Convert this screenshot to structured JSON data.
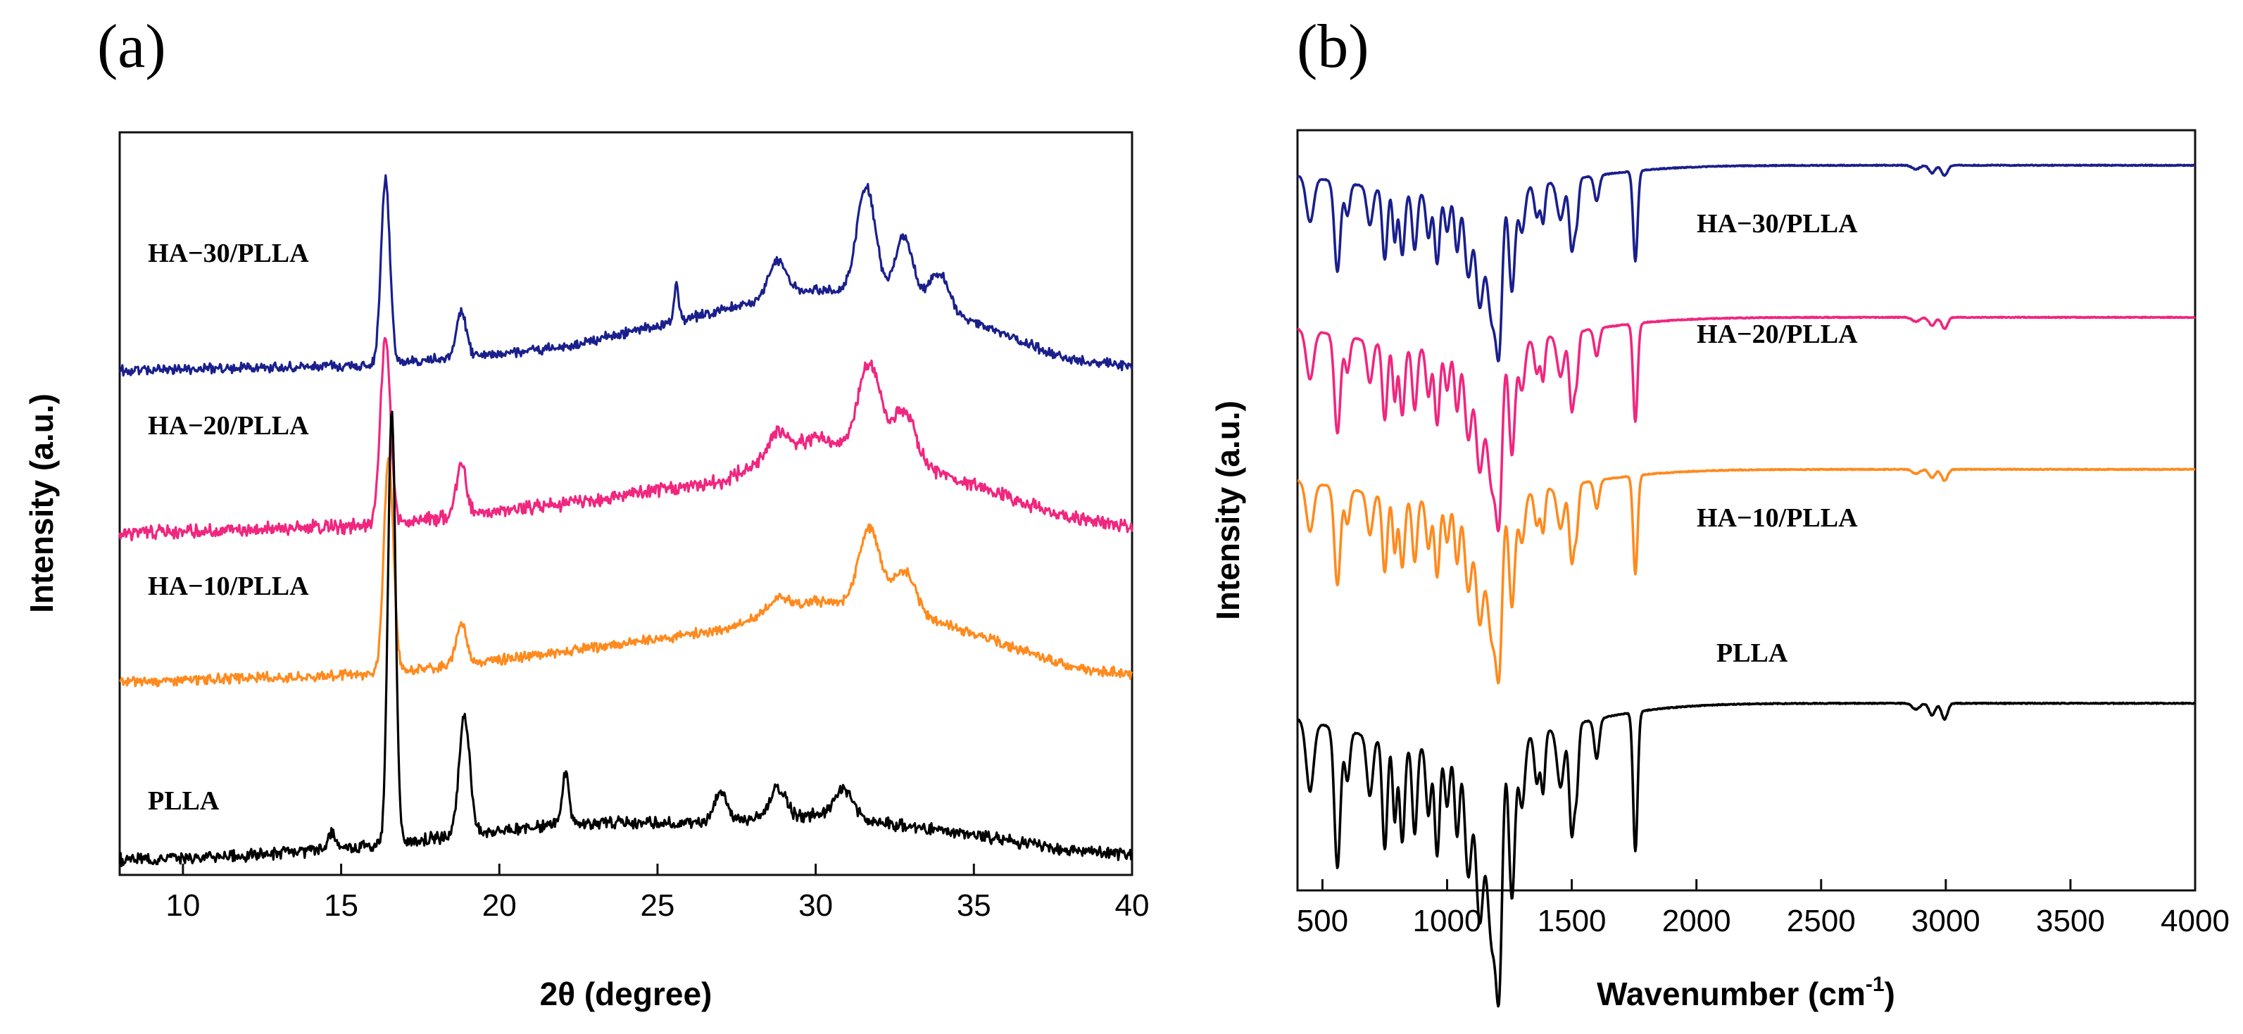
{
  "chart_data": [
    {
      "panel_label": "(a)",
      "type": "line",
      "xlabel": "2θ (degree)",
      "ylabel": "Intensity (a.u.)",
      "xlim": [
        8,
        40
      ],
      "xticks": [
        10,
        15,
        20,
        25,
        30,
        35,
        40
      ],
      "y_tick_labels": false,
      "grid": false,
      "legend": "inline labels left of each trace",
      "series": [
        {
          "name": "HA−30/PLLA",
          "color": "#1a1f8c",
          "offset": 3.3,
          "noise": 0.05,
          "peaks": [
            [
              16.4,
              1.25,
              0.14
            ],
            [
              18.8,
              0.3,
              0.16
            ],
            [
              25.6,
              0.25,
              0.07
            ],
            [
              28.8,
              0.25,
              0.3
            ],
            [
              31.6,
              0.75,
              0.3
            ],
            [
              32.8,
              0.45,
              0.3
            ],
            [
              33.9,
              0.25,
              0.3
            ]
          ],
          "baseline": [
            [
              8,
              0.05
            ],
            [
              16,
              0.08
            ],
            [
              22,
              0.2
            ],
            [
              27,
              0.45
            ],
            [
              30,
              0.6
            ],
            [
              34,
              0.45
            ],
            [
              38,
              0.12
            ],
            [
              40,
              0.08
            ]
          ]
        },
        {
          "name": "HA−20/PLLA",
          "color": "#f0267f",
          "offset": 2.2,
          "noise": 0.07,
          "peaks": [
            [
              16.4,
              1.25,
              0.16
            ],
            [
              18.8,
              0.35,
              0.16
            ],
            [
              28.8,
              0.15,
              0.3
            ],
            [
              31.7,
              0.6,
              0.35
            ],
            [
              32.8,
              0.35,
              0.35
            ]
          ],
          "baseline": [
            [
              8,
              0.05
            ],
            [
              16,
              0.1
            ],
            [
              22,
              0.25
            ],
            [
              27,
              0.4
            ],
            [
              30,
              0.7
            ],
            [
              34,
              0.45
            ],
            [
              38,
              0.15
            ],
            [
              40,
              0.1
            ]
          ]
        },
        {
          "name": "HA−10/PLLA",
          "color": "#ff8a1e",
          "offset": 1.2,
          "noise": 0.05,
          "peaks": [
            [
              16.5,
              1.45,
              0.15
            ],
            [
              18.8,
              0.28,
              0.16
            ],
            [
              28.8,
              0.1,
              0.3
            ],
            [
              31.7,
              0.55,
              0.35
            ],
            [
              32.8,
              0.3,
              0.35
            ]
          ],
          "baseline": [
            [
              8,
              0.05
            ],
            [
              16,
              0.1
            ],
            [
              22,
              0.25
            ],
            [
              27,
              0.4
            ],
            [
              30,
              0.6
            ],
            [
              34,
              0.45
            ],
            [
              38,
              0.15
            ],
            [
              40,
              0.1
            ]
          ]
        },
        {
          "name": "PLLA",
          "color": "#000000",
          "offset": 0.0,
          "noise": 0.06,
          "peaks": [
            [
              14.7,
              0.1,
              0.12
            ],
            [
              16.6,
              2.9,
              0.12
            ],
            [
              18.9,
              0.8,
              0.17
            ],
            [
              22.1,
              0.35,
              0.1
            ],
            [
              27.0,
              0.2,
              0.2
            ],
            [
              28.8,
              0.2,
              0.25
            ],
            [
              30.9,
              0.2,
              0.3
            ]
          ],
          "baseline": [
            [
              8,
              0.05
            ],
            [
              12,
              0.08
            ],
            [
              16,
              0.15
            ],
            [
              22,
              0.3
            ],
            [
              26,
              0.3
            ],
            [
              30,
              0.35
            ],
            [
              34,
              0.25
            ],
            [
              38,
              0.12
            ],
            [
              40,
              0.08
            ]
          ]
        }
      ]
    },
    {
      "panel_label": "(b)",
      "type": "line",
      "xlabel": "Wavenumber (cm",
      "xlabel_sup": "-1",
      "xlabel_tail": ")",
      "ylabel": "Intensity (a.u.)",
      "xlim": [
        400,
        4000
      ],
      "xticks": [
        500,
        1000,
        1500,
        2000,
        2500,
        3000,
        3500,
        4000
      ],
      "y_tick_labels": false,
      "grid": false,
      "legend": "inline labels right of each trace",
      "bands": [
        [
          450,
          0.35,
          15
        ],
        [
          560,
          0.7,
          12
        ],
        [
          600,
          0.25,
          10
        ],
        [
          690,
          0.3,
          12
        ],
        [
          750,
          0.55,
          10
        ],
        [
          790,
          0.4,
          8
        ],
        [
          820,
          0.5,
          10
        ],
        [
          870,
          0.45,
          10
        ],
        [
          925,
          0.35,
          10
        ],
        [
          960,
          0.55,
          10
        ],
        [
          1000,
          0.3,
          10
        ],
        [
          1040,
          0.45,
          10
        ],
        [
          1085,
          0.65,
          14
        ],
        [
          1130,
          0.85,
          15
        ],
        [
          1180,
          1.0,
          20
        ],
        [
          1210,
          0.95,
          12
        ],
        [
          1260,
          0.8,
          12
        ],
        [
          1300,
          0.35,
          12
        ],
        [
          1360,
          0.25,
          10
        ],
        [
          1385,
          0.3,
          8
        ],
        [
          1455,
          0.3,
          14
        ],
        [
          1500,
          0.55,
          10
        ],
        [
          1520,
          0.3,
          8
        ],
        [
          1600,
          0.2,
          10
        ],
        [
          1755,
          0.7,
          9
        ],
        [
          2880,
          0.03,
          15
        ],
        [
          2945,
          0.06,
          12
        ],
        [
          2995,
          0.08,
          12
        ]
      ],
      "series": [
        {
          "name": "HA−30/PLLA",
          "color": "#1a1f8c",
          "offset": 3.0,
          "amp": 0.55
        },
        {
          "name": "HA−20/PLLA",
          "color": "#f0267f",
          "offset": 2.35,
          "amp": 0.6
        },
        {
          "name": "HA−10/PLLA",
          "color": "#ff8a1e",
          "offset": 1.7,
          "amp": 0.6
        },
        {
          "name": "PLLA",
          "color": "#000000",
          "offset": 0.7,
          "amp": 0.85
        }
      ]
    }
  ]
}
